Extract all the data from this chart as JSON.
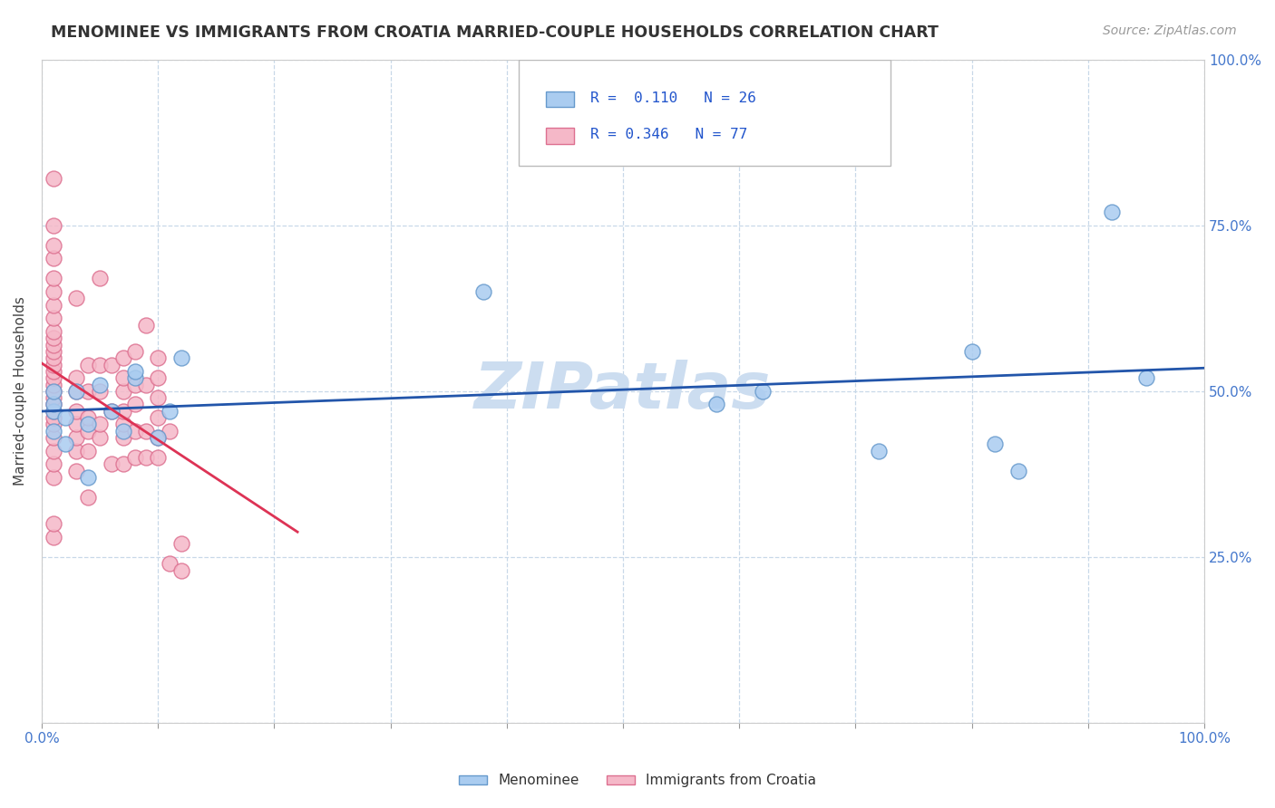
{
  "title": "MENOMINEE VS IMMIGRANTS FROM CROATIA MARRIED-COUPLE HOUSEHOLDS CORRELATION CHART",
  "source": "Source: ZipAtlas.com",
  "ylabel": "Married-couple Households",
  "xlim": [
    0,
    1.0
  ],
  "ylim": [
    0.0,
    1.0
  ],
  "watermark": "ZIPatlas",
  "legend_r1": "R =  0.110",
  "legend_n1": "N = 26",
  "legend_r2": "R = 0.346",
  "legend_n2": "N = 77",
  "menominee_color": "#aaccf0",
  "menominee_edge": "#6699cc",
  "croatia_color": "#f5b8c8",
  "croatia_edge": "#dd7090",
  "menominee_line_color": "#2255aa",
  "croatia_line_color": "#dd3355",
  "background_color": "#ffffff",
  "grid_color": "#c8d8e8",
  "title_fontsize": 12.5,
  "axis_fontsize": 11,
  "tick_fontsize": 11,
  "source_fontsize": 10,
  "watermark_color": "#ccddf0",
  "watermark_fontsize": 52,
  "menominee_x": [
    0.01,
    0.01,
    0.01,
    0.01,
    0.02,
    0.02,
    0.03,
    0.04,
    0.04,
    0.05,
    0.06,
    0.07,
    0.08,
    0.08,
    0.1,
    0.11,
    0.12,
    0.38,
    0.58,
    0.62,
    0.72,
    0.8,
    0.82,
    0.84,
    0.92,
    0.95
  ],
  "menominee_y": [
    0.44,
    0.47,
    0.48,
    0.5,
    0.42,
    0.46,
    0.5,
    0.37,
    0.45,
    0.51,
    0.47,
    0.44,
    0.52,
    0.53,
    0.43,
    0.47,
    0.55,
    0.65,
    0.48,
    0.5,
    0.41,
    0.56,
    0.42,
    0.38,
    0.77,
    0.52
  ],
  "croatia_x": [
    0.01,
    0.01,
    0.01,
    0.01,
    0.01,
    0.01,
    0.01,
    0.01,
    0.01,
    0.01,
    0.01,
    0.01,
    0.01,
    0.01,
    0.01,
    0.01,
    0.01,
    0.01,
    0.01,
    0.01,
    0.01,
    0.01,
    0.01,
    0.01,
    0.01,
    0.01,
    0.01,
    0.01,
    0.01,
    0.03,
    0.03,
    0.03,
    0.03,
    0.03,
    0.03,
    0.03,
    0.03,
    0.04,
    0.04,
    0.04,
    0.04,
    0.04,
    0.04,
    0.05,
    0.05,
    0.05,
    0.05,
    0.05,
    0.06,
    0.06,
    0.06,
    0.07,
    0.07,
    0.07,
    0.07,
    0.07,
    0.07,
    0.07,
    0.08,
    0.08,
    0.08,
    0.08,
    0.08,
    0.09,
    0.09,
    0.09,
    0.09,
    0.1,
    0.1,
    0.1,
    0.1,
    0.1,
    0.1,
    0.11,
    0.11,
    0.12,
    0.12
  ],
  "croatia_y": [
    0.28,
    0.3,
    0.37,
    0.39,
    0.41,
    0.43,
    0.45,
    0.46,
    0.47,
    0.48,
    0.49,
    0.5,
    0.51,
    0.52,
    0.53,
    0.54,
    0.55,
    0.56,
    0.57,
    0.58,
    0.59,
    0.61,
    0.63,
    0.65,
    0.67,
    0.7,
    0.72,
    0.75,
    0.82,
    0.38,
    0.41,
    0.43,
    0.45,
    0.47,
    0.5,
    0.52,
    0.64,
    0.34,
    0.41,
    0.44,
    0.46,
    0.5,
    0.54,
    0.43,
    0.45,
    0.5,
    0.54,
    0.67,
    0.39,
    0.47,
    0.54,
    0.39,
    0.43,
    0.45,
    0.47,
    0.5,
    0.52,
    0.55,
    0.4,
    0.44,
    0.48,
    0.51,
    0.56,
    0.4,
    0.44,
    0.51,
    0.6,
    0.4,
    0.43,
    0.46,
    0.49,
    0.52,
    0.55,
    0.24,
    0.44,
    0.23,
    0.27
  ]
}
